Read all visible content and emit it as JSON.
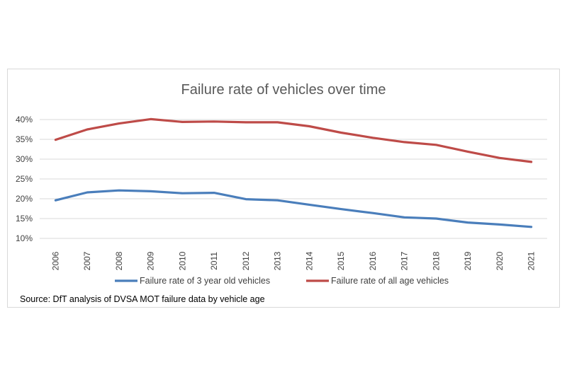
{
  "colors": {
    "blue": "#4a7ebb",
    "red": "#be4b48",
    "grid": "#d9d9d9",
    "text": "#404040"
  },
  "chart_data": {
    "type": "line",
    "title": "Failure rate of vehicles over time",
    "x": [
      "2006",
      "2007",
      "2008",
      "2009",
      "2010",
      "2011",
      "2012",
      "2013",
      "2014",
      "2015",
      "2016",
      "2017",
      "2018",
      "2019",
      "2020",
      "2021"
    ],
    "series": [
      {
        "name": "Failure rate of 3 year old vehicles",
        "color": "#4a7ebb",
        "values": [
          19.6,
          21.6,
          22.1,
          21.9,
          21.4,
          21.5,
          19.9,
          19.6,
          18.5,
          17.4,
          16.4,
          15.3,
          15.0,
          14.0,
          13.5,
          12.9
        ]
      },
      {
        "name": "Failure rate of all age vehicles",
        "color": "#be4b48",
        "values": [
          34.9,
          37.5,
          39.0,
          40.1,
          39.4,
          39.5,
          39.3,
          39.3,
          38.3,
          36.7,
          35.4,
          34.3,
          33.6,
          31.9,
          30.3,
          29.3
        ]
      }
    ],
    "yticks": [
      "10%",
      "15%",
      "20%",
      "25%",
      "30%",
      "35%",
      "40%"
    ],
    "ylim": [
      10,
      40
    ],
    "grid": true,
    "legend": "bottom",
    "xlabel": "",
    "ylabel": ""
  },
  "source": "Source: DfT analysis of DVSA MOT failure data by vehicle age"
}
